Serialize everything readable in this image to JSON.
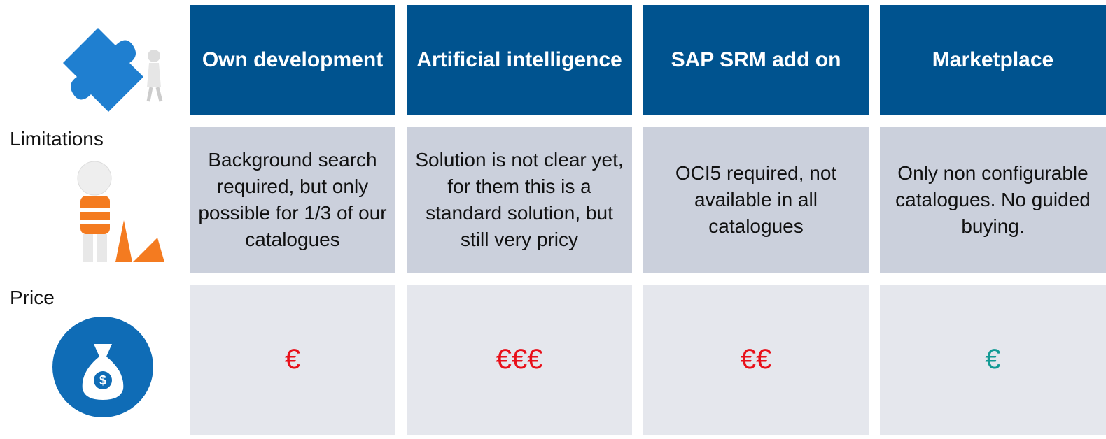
{
  "header": {
    "columns": [
      "Own development",
      "Artificial intelligence",
      "SAP SRM add on",
      "Marketplace"
    ]
  },
  "rows": [
    {
      "label": "Limitations",
      "cells": [
        {
          "text": "Background search required, but only possible for 1/3 of our catalogues"
        },
        {
          "text": "Solution is not clear yet, for them this is a standard solution, but still very pricy"
        },
        {
          "text": "OCI5 required, not available in all catalogues"
        },
        {
          "text": "Only non configurable catalogues. No guided buying."
        }
      ]
    },
    {
      "label": "Price",
      "cells": [
        {
          "text": "€",
          "color": "#e8101a"
        },
        {
          "text": "€€€",
          "color": "#e8101a"
        },
        {
          "text": "€€",
          "color": "#e8101a"
        },
        {
          "text": "€",
          "color": "#139a94"
        }
      ]
    }
  ]
}
